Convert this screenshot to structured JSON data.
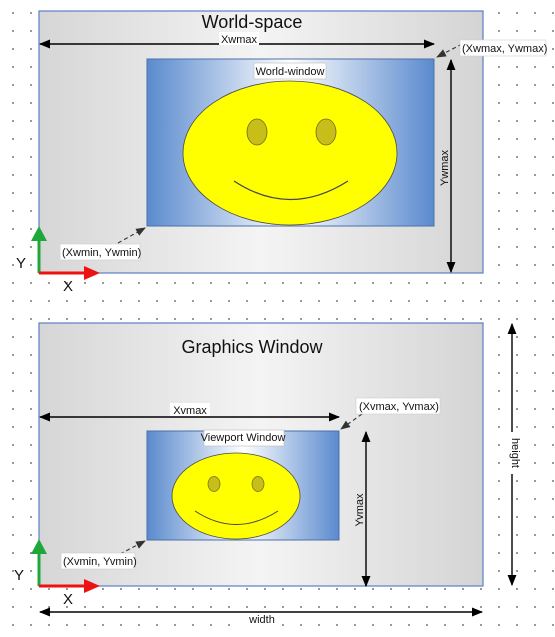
{
  "top": {
    "title": "World-space",
    "window_label": "World-window",
    "max_corner": "(Xwmax, Ywmax)",
    "min_corner": "(Xwmin, Ywmin)",
    "width_label": "Xwmax",
    "height_label": "Ywmax",
    "axis_x": "X",
    "axis_y": "Y"
  },
  "bottom": {
    "title": "Graphics Window",
    "window_label": "Viewport Window",
    "max_corner": "(Xvmax, Yvmax)",
    "min_corner": "(Xvmin, Yvmin)",
    "width_label": "Xvmax",
    "height_label": "Yvmax",
    "axis_x": "X",
    "axis_y": "Y",
    "total_width_label": "width",
    "total_height_label": "height"
  },
  "colors": {
    "frame_border": "#5b7fc4",
    "window_blue": "#5f8fd0",
    "face_fill": "#ffff00",
    "eye_fill": "#c8be1a",
    "axis_x": "#ee1111",
    "axis_y": "#1fa83a"
  }
}
